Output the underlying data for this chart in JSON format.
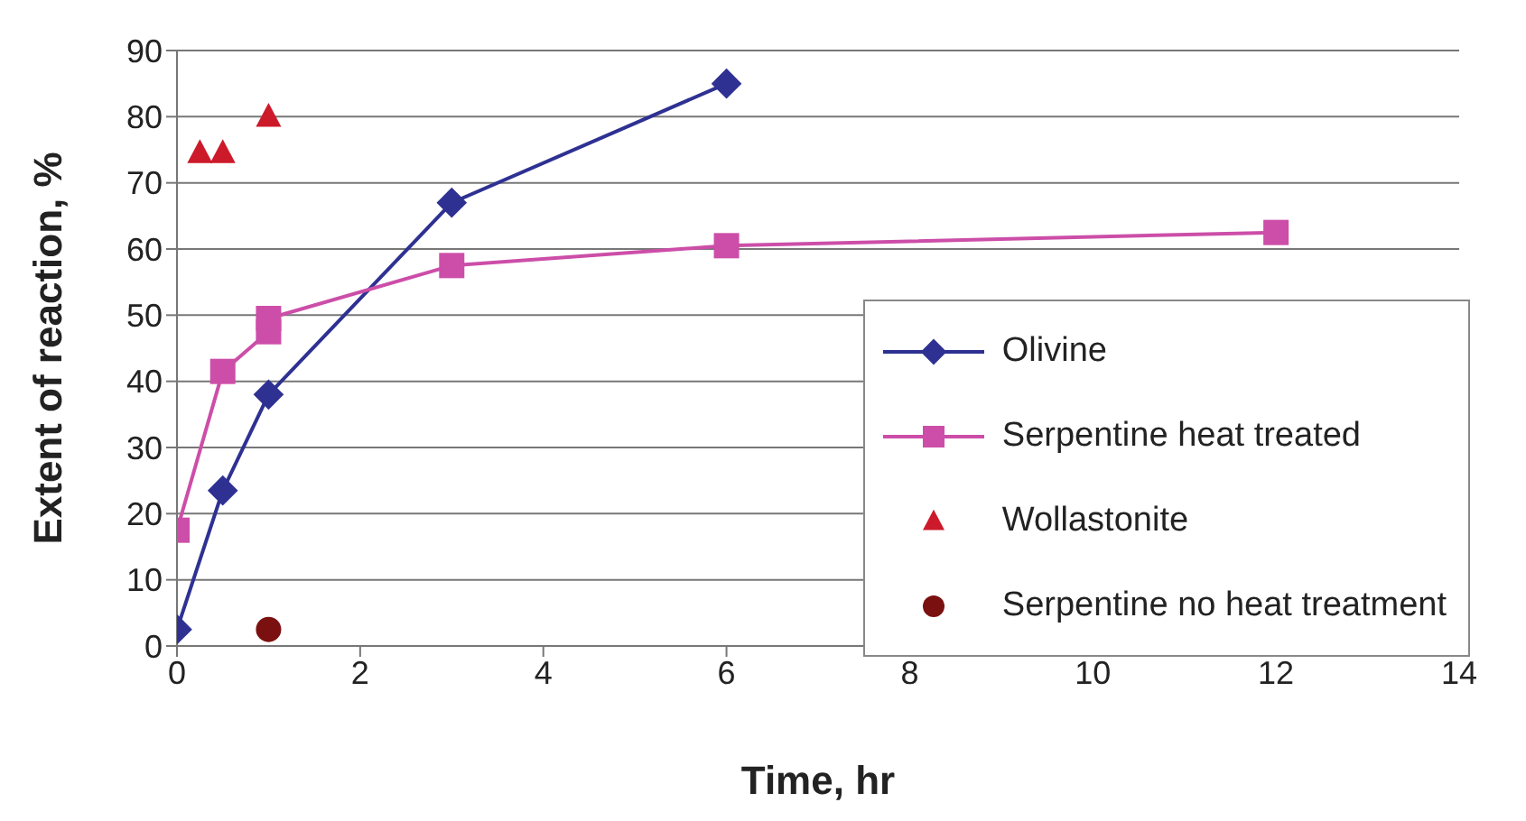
{
  "chart_data": {
    "type": "line",
    "xlabel": "Time, hr",
    "ylabel": "Extent of reaction, %",
    "xlim": [
      0,
      14
    ],
    "xticks": [
      0,
      2,
      4,
      6,
      8,
      10,
      12,
      14
    ],
    "ylim": [
      0,
      90
    ],
    "yticks": [
      0,
      10,
      20,
      30,
      40,
      50,
      60,
      70,
      80,
      90
    ],
    "grid": "y",
    "legend": "bottom right",
    "line_style": "solid",
    "series": [
      {
        "name": "Olivine",
        "marker": "diamond",
        "color": "#2e3192",
        "x": [
          0,
          0.5,
          1,
          3,
          6
        ],
        "values": [
          2.5,
          23.5,
          38,
          67,
          85
        ]
      },
      {
        "name": "Serpentine heat treated",
        "marker": "square",
        "color": "#cc4ea8",
        "x": [
          0,
          0.5,
          1,
          1,
          3,
          6,
          12
        ],
        "values": [
          17.5,
          41.5,
          47.5,
          49.5,
          57.5,
          60.5,
          62.5
        ]
      },
      {
        "name": "Wollastonite",
        "type": "scatter",
        "marker": "triangle",
        "color": "#cc1a2a",
        "x": [
          0.25,
          0.5,
          1
        ],
        "values": [
          74.5,
          74.5,
          80
        ]
      },
      {
        "name": "Serpentine no heat treatment",
        "type": "scatter",
        "marker": "circle",
        "color": "#7b1010",
        "x": [
          1
        ],
        "values": [
          2.5
        ]
      }
    ]
  }
}
